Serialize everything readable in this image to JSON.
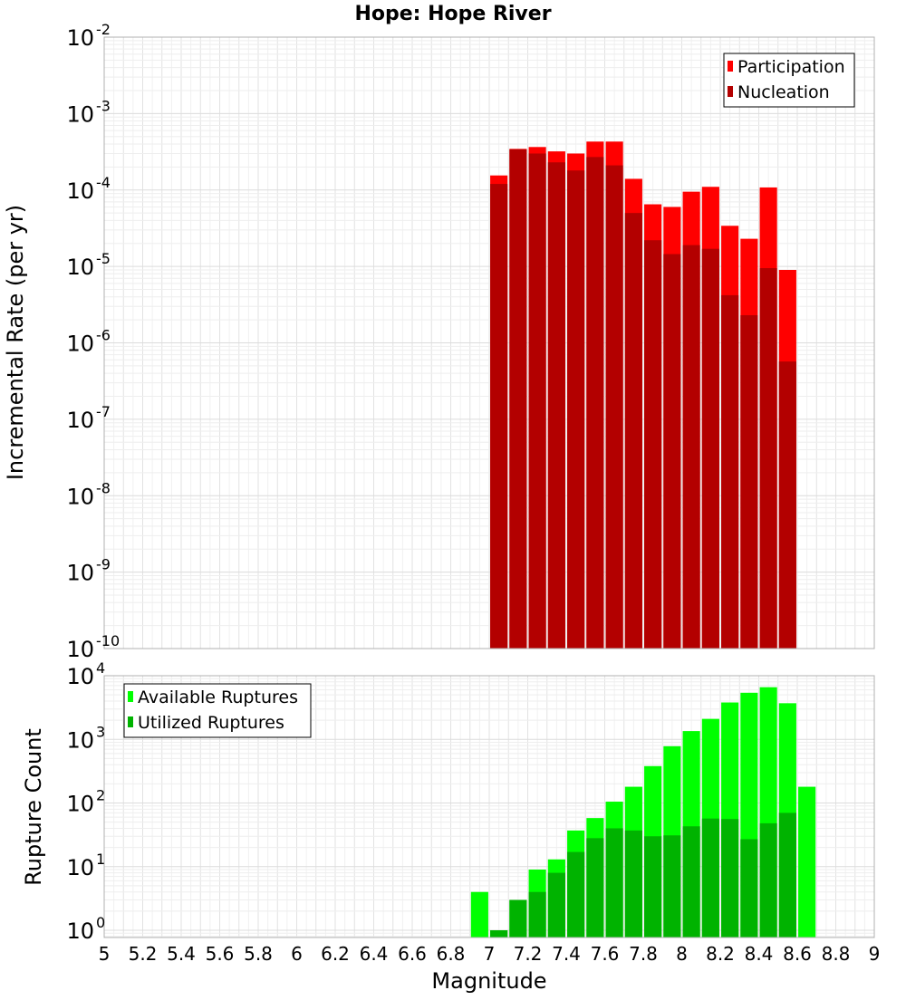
{
  "chart_data": [
    {
      "type": "bar",
      "title": "Hope: Hope River",
      "ylabel": "Incremental Rate (per yr)",
      "xlim": [
        5,
        9
      ],
      "ylim": [
        1e-10,
        0.01
      ],
      "yscale": "log",
      "grid": true,
      "legend_position": "top-right",
      "y_ticks": [
        {
          "base": "10",
          "exp": "-10",
          "value": 1e-10
        },
        {
          "base": "10",
          "exp": "-9",
          "value": 1e-09
        },
        {
          "base": "10",
          "exp": "-8",
          "value": 1e-08
        },
        {
          "base": "10",
          "exp": "-7",
          "value": 1e-07
        },
        {
          "base": "10",
          "exp": "-6",
          "value": 1e-06
        },
        {
          "base": "10",
          "exp": "-5",
          "value": 1e-05
        },
        {
          "base": "10",
          "exp": "-4",
          "value": 0.0001
        },
        {
          "base": "10",
          "exp": "-3",
          "value": 0.001
        },
        {
          "base": "10",
          "exp": "-2",
          "value": 0.01
        }
      ],
      "x": [
        7.05,
        7.15,
        7.25,
        7.35,
        7.45,
        7.55,
        7.65,
        7.75,
        7.85,
        7.95,
        8.05,
        8.15,
        8.25,
        8.35,
        8.45,
        8.55
      ],
      "series": [
        {
          "name": "Participation",
          "color": "#ff0000",
          "values": [
            0.000155,
            0.000345,
            0.000365,
            0.00032,
            0.0003,
            0.00043,
            0.00043,
            0.00014,
            6.5e-05,
            6e-05,
            9.5e-05,
            0.00011,
            3.4e-05,
            2.3e-05,
            0.000108,
            9e-06
          ]
        },
        {
          "name": "Nucleation",
          "color": "#b30000",
          "values": [
            0.00012,
            0.00034,
            0.0003,
            0.00023,
            0.00018,
            0.00027,
            0.00021,
            5e-05,
            2.2e-05,
            1.45e-05,
            1.9e-05,
            1.7e-05,
            4.2e-06,
            2.3e-06,
            9.5e-06,
            5.7e-07
          ]
        }
      ]
    },
    {
      "type": "bar",
      "title": "",
      "xlabel": "Magnitude",
      "ylabel": "Rupture Count",
      "xlim": [
        5,
        9
      ],
      "ylim": [
        0.77,
        10000
      ],
      "yscale": "log",
      "grid": true,
      "legend_position": "top-left",
      "x_ticks": [
        "5",
        "5.2",
        "5.4",
        "5.6",
        "5.8",
        "6",
        "6.2",
        "6.4",
        "6.6",
        "6.8",
        "7",
        "7.2",
        "7.4",
        "7.6",
        "7.8",
        "8",
        "8.2",
        "8.4",
        "8.6",
        "8.8",
        "9"
      ],
      "y_ticks": [
        {
          "base": "10",
          "exp": "0",
          "value": 1
        },
        {
          "base": "10",
          "exp": "1",
          "value": 10
        },
        {
          "base": "10",
          "exp": "2",
          "value": 100
        },
        {
          "base": "10",
          "exp": "3",
          "value": 1000
        },
        {
          "base": "10",
          "exp": "4",
          "value": 10000
        }
      ],
      "x": [
        6.95,
        7.05,
        7.15,
        7.25,
        7.35,
        7.45,
        7.55,
        7.65,
        7.75,
        7.85,
        7.95,
        8.05,
        8.15,
        8.25,
        8.35,
        8.45,
        8.55,
        8.65
      ],
      "series": [
        {
          "name": "Available Ruptures",
          "color": "#00ff00",
          "values": [
            4,
            1,
            3,
            9,
            13,
            37,
            58,
            105,
            180,
            380,
            780,
            1350,
            2100,
            3800,
            5400,
            6600,
            3700,
            180
          ]
        },
        {
          "name": "Utilized Ruptures",
          "color": "#00b300",
          "values": [
            0,
            1,
            3,
            4,
            8,
            17,
            28,
            40,
            37,
            30,
            31,
            43,
            57,
            56,
            27,
            48,
            70,
            0
          ]
        }
      ]
    }
  ]
}
